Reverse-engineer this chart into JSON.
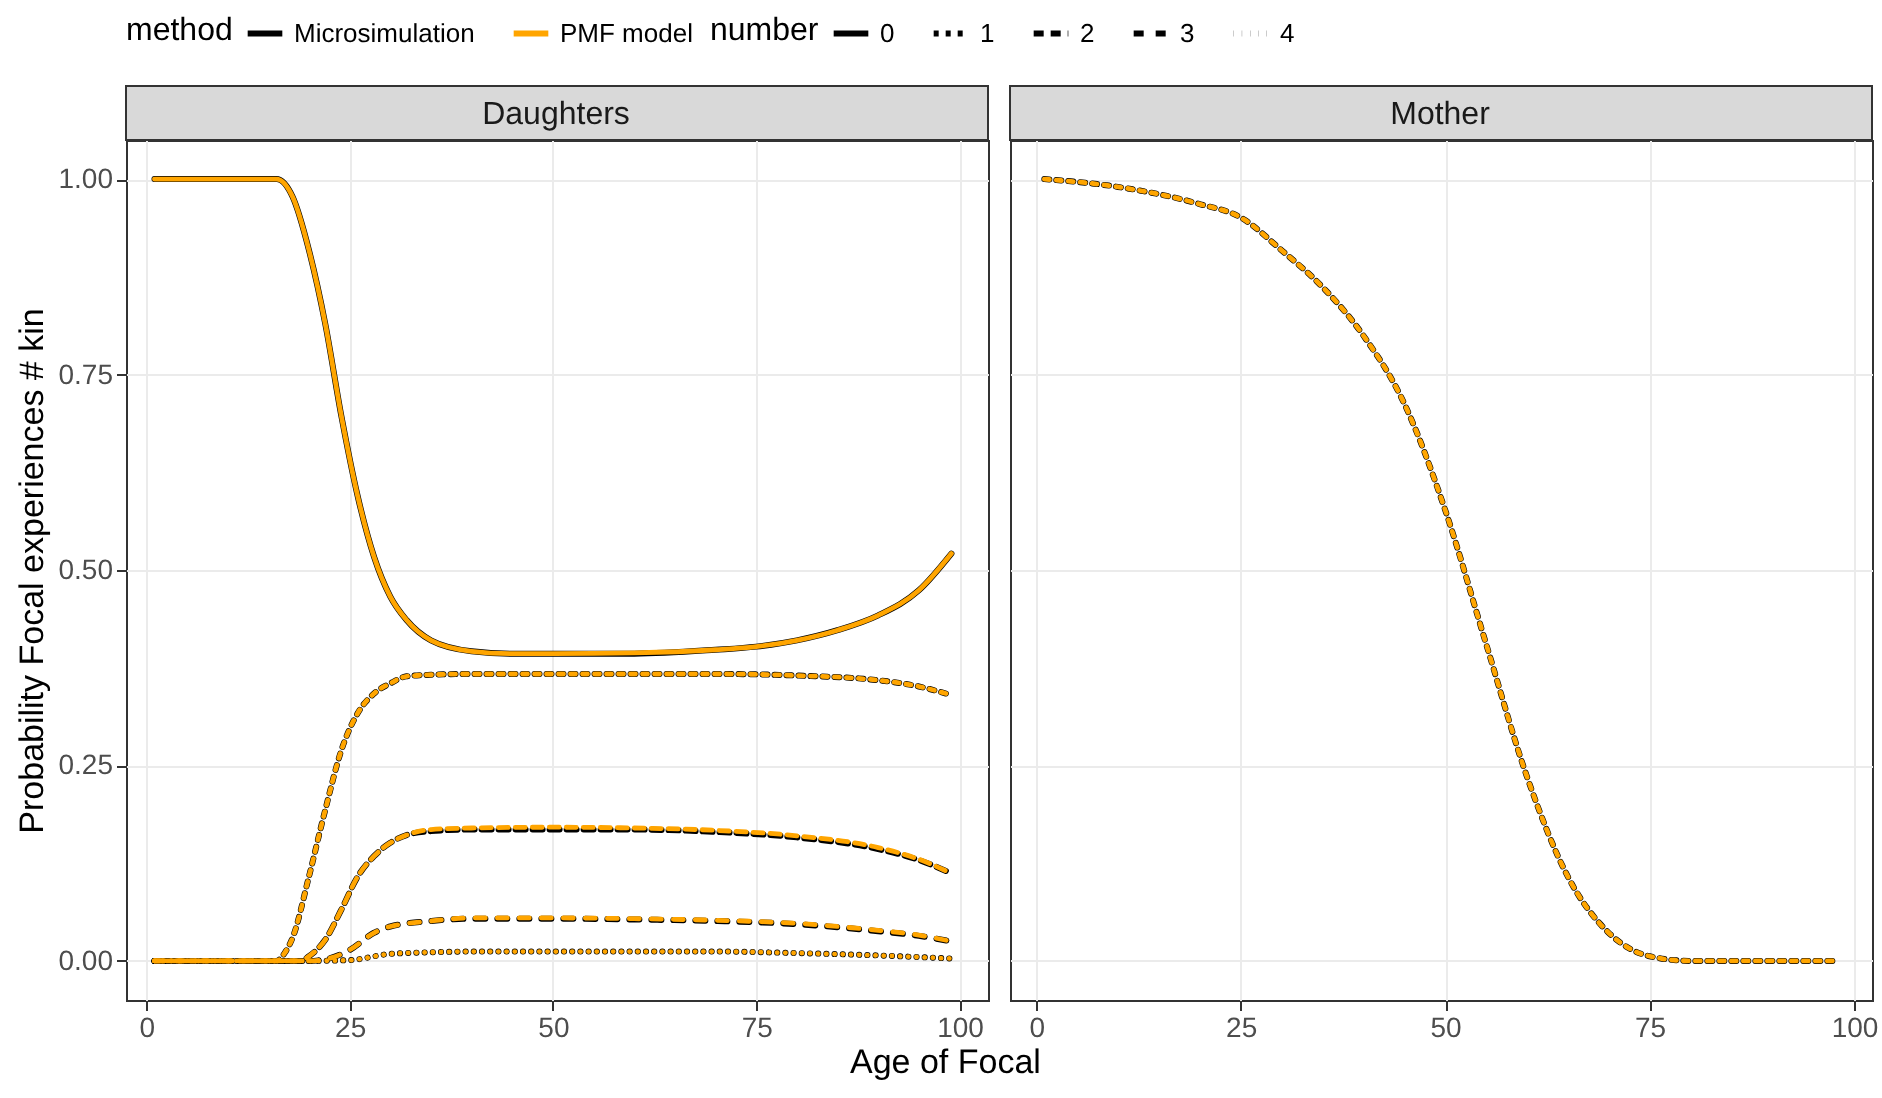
{
  "chart_data": [
    {
      "type": "line",
      "title": "Daughters",
      "xlabel": "Age of Focal",
      "ylabel": "Probability Focal experiences # kin",
      "legend_title": [
        "method",
        "number"
      ],
      "legend": "top",
      "grid": true,
      "xlim": [
        -2.5,
        103.5
      ],
      "xticks": [
        0,
        25,
        50,
        75,
        100
      ],
      "ylim": [
        -0.05,
        1.05
      ],
      "yticks": [
        {
          "value": 0,
          "label": "0.00"
        },
        {
          "value": 0.25,
          "label": "0.25"
        },
        {
          "value": 0.5,
          "label": "0.50"
        },
        {
          "value": 0.75,
          "label": "0.75"
        },
        {
          "value": 1,
          "label": "1.00"
        }
      ],
      "series": [
        {
          "name": "Microsimulation",
          "line_style": "solid",
          "color": "#000000",
          "x": [
            1,
            10,
            16,
            18,
            20,
            22,
            24,
            26,
            28,
            30,
            32,
            35,
            40,
            45,
            50,
            60,
            70,
            75,
            80,
            85,
            90,
            95,
            99
          ],
          "values": [
            1,
            1,
            1,
            0.977,
            0.909,
            0.815,
            0.696,
            0.594,
            0.517,
            0.466,
            0.436,
            0.41,
            0.396,
            0.393,
            0.393,
            0.393,
            0.398,
            0.402,
            0.41,
            0.423,
            0.442,
            0.474,
            0.521
          ]
        },
        {
          "name": "0",
          "line_style": "solid",
          "color": "#000000"
        },
        {
          "name": "1",
          "line_style": "dashed",
          "color": "#000000",
          "x": [
            1,
            10,
            16,
            17,
            18,
            20,
            22,
            24,
            26,
            28,
            30,
            32,
            35,
            40,
            50,
            60,
            70,
            80,
            90,
            95,
            99
          ],
          "values": [
            0,
            0,
            0,
            0.01,
            0.03,
            0.108,
            0.193,
            0.27,
            0.317,
            0.342,
            0.355,
            0.364,
            0.366,
            0.367,
            0.367,
            0.367,
            0.367,
            0.365,
            0.359,
            0.351,
            0.34
          ]
        },
        {
          "name": "2",
          "line_style": "longdash",
          "color": "#000000",
          "x": [
            1,
            10,
            19,
            20,
            22,
            24,
            26,
            28,
            30,
            32,
            35,
            40,
            50,
            60,
            70,
            80,
            90,
            95,
            99
          ],
          "values": [
            0,
            0,
            0,
            0.006,
            0.027,
            0.066,
            0.108,
            0.134,
            0.151,
            0.161,
            0.166,
            0.168,
            0.168,
            0.168,
            0.165,
            0.158,
            0.143,
            0.129,
            0.112
          ]
        },
        {
          "name": "3",
          "line_style": "widedash",
          "color": "#000000",
          "x": [
            1,
            10,
            20,
            22,
            25,
            28,
            30,
            35,
            40,
            50,
            60,
            70,
            80,
            90,
            95,
            99
          ],
          "values": [
            0,
            0,
            0,
            0.002,
            0.014,
            0.036,
            0.044,
            0.051,
            0.054,
            0.054,
            0.053,
            0.051,
            0.047,
            0.038,
            0.032,
            0.025
          ]
        },
        {
          "name": "4",
          "line_style": "dotted",
          "color": "#000000",
          "x": [
            1,
            10,
            20,
            25,
            30,
            35,
            40,
            50,
            60,
            70,
            80,
            90,
            99
          ],
          "values": [
            0,
            0,
            0,
            0.001,
            0.009,
            0.011,
            0.012,
            0.012,
            0.012,
            0.012,
            0.01,
            0.007,
            0.003
          ]
        },
        {
          "name": "PMF model",
          "line_style": "solid",
          "color": "#ffa500",
          "x": [
            1,
            10,
            16,
            18,
            20,
            22,
            24,
            26,
            28,
            30,
            32,
            35,
            40,
            45,
            50,
            60,
            70,
            75,
            80,
            85,
            90,
            95,
            99
          ],
          "values": [
            1,
            1,
            1,
            0.977,
            0.909,
            0.815,
            0.696,
            0.594,
            0.517,
            0.466,
            0.436,
            0.41,
            0.396,
            0.393,
            0.393,
            0.394,
            0.398,
            0.402,
            0.41,
            0.423,
            0.442,
            0.474,
            0.521
          ]
        },
        {
          "line_style": "dashed",
          "color": "#ffa500",
          "x": [
            1,
            10,
            16,
            17,
            18,
            20,
            22,
            24,
            26,
            28,
            30,
            32,
            35,
            40,
            50,
            60,
            70,
            80,
            90,
            95,
            99
          ],
          "values": [
            0,
            0,
            0,
            0.01,
            0.03,
            0.108,
            0.193,
            0.27,
            0.317,
            0.342,
            0.355,
            0.364,
            0.366,
            0.367,
            0.367,
            0.367,
            0.367,
            0.365,
            0.359,
            0.351,
            0.34
          ]
        },
        {
          "line_style": "longdash",
          "color": "#ffa500",
          "x": [
            1,
            10,
            19,
            20,
            22,
            24,
            26,
            28,
            30,
            32,
            35,
            40,
            50,
            60,
            70,
            80,
            90,
            95,
            99
          ],
          "values": [
            0,
            0,
            0,
            0.006,
            0.027,
            0.066,
            0.108,
            0.134,
            0.151,
            0.161,
            0.168,
            0.17,
            0.171,
            0.17,
            0.167,
            0.16,
            0.145,
            0.13,
            0.112
          ]
        },
        {
          "line_style": "widedash",
          "color": "#ffa500",
          "x": [
            1,
            10,
            20,
            22,
            25,
            28,
            30,
            35,
            40,
            50,
            60,
            70,
            80,
            90,
            95,
            99
          ],
          "values": [
            0,
            0,
            0,
            0.002,
            0.014,
            0.036,
            0.044,
            0.051,
            0.055,
            0.055,
            0.054,
            0.052,
            0.048,
            0.039,
            0.033,
            0.025
          ]
        },
        {
          "line_style": "dotted",
          "color": "#ffa500",
          "x": [
            1,
            10,
            20,
            25,
            30,
            35,
            40,
            50,
            60,
            70,
            80,
            90,
            99
          ],
          "values": [
            0,
            0,
            0,
            0.001,
            0.009,
            0.011,
            0.012,
            0.012,
            0.012,
            0.012,
            0.01,
            0.007,
            0.003
          ]
        }
      ]
    },
    {
      "type": "line",
      "title": "Mother",
      "grid": true,
      "tick_labels": "x",
      "xlim": [
        -3.2,
        102.2
      ],
      "xticks": [
        0,
        25,
        50,
        75,
        100
      ],
      "ylim": [
        -0.05,
        1.05
      ],
      "yticks": [
        0,
        0.25,
        0.5,
        0.75,
        1
      ],
      "series": [
        {
          "line_style": "dashed",
          "color": "#000000",
          "x": [
            1,
            10,
            20,
            25,
            30,
            35,
            40,
            45,
            50,
            55,
            60,
            65,
            70,
            75,
            80,
            90,
            98
          ],
          "values": [
            1,
            0.99,
            0.968,
            0.951,
            0.909,
            0.862,
            0.8,
            0.713,
            0.577,
            0.406,
            0.236,
            0.108,
            0.036,
            0.006,
            0,
            0,
            0
          ]
        },
        {
          "line_style": "dashed",
          "color": "#ffa500",
          "x": [
            1,
            10,
            20,
            25,
            30,
            35,
            40,
            45,
            50,
            55,
            60,
            65,
            70,
            75,
            80,
            90,
            98
          ],
          "values": [
            1,
            0.99,
            0.968,
            0.951,
            0.909,
            0.862,
            0.8,
            0.713,
            0.577,
            0.406,
            0.236,
            0.108,
            0.036,
            0.006,
            0,
            0,
            0
          ]
        }
      ]
    }
  ]
}
